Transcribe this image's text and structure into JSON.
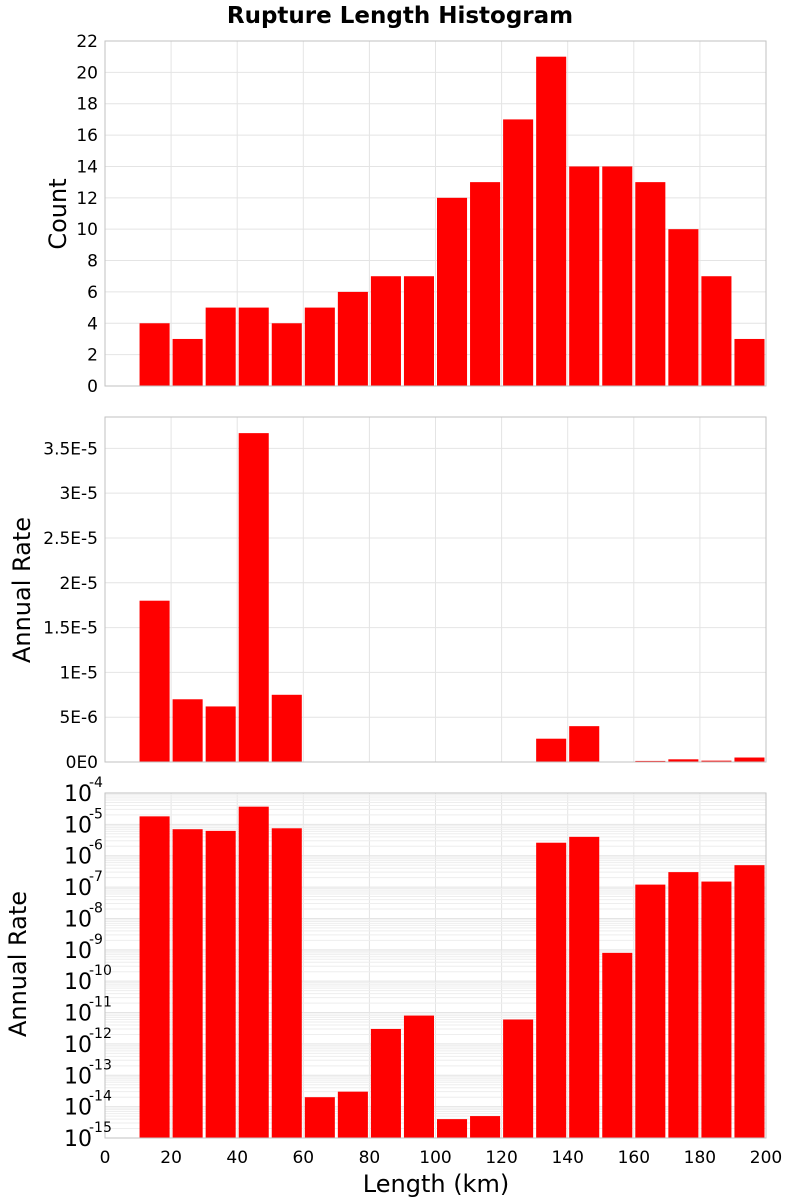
{
  "figure": {
    "title": "Rupture Length Histogram",
    "xlabel": "Length (km)",
    "bar_color": "#ff0000",
    "grid_color": "#e4e4e4",
    "frame_color": "#c2c2c2"
  },
  "chart_data": [
    {
      "type": "bar",
      "ylabel": "Count",
      "yscale": "linear",
      "xlim": [
        0,
        200
      ],
      "ylim": [
        0,
        22
      ],
      "bin_width": 10,
      "bin_centers": [
        15,
        25,
        35,
        45,
        55,
        65,
        75,
        85,
        95,
        105,
        115,
        125,
        135,
        145,
        155,
        165,
        175,
        185,
        195
      ],
      "values": [
        4,
        3,
        5,
        5,
        4,
        5,
        6,
        7,
        7,
        12,
        13,
        17,
        21,
        14,
        14,
        13,
        10,
        7,
        3
      ],
      "y_ticks": [
        0,
        2,
        4,
        6,
        8,
        10,
        12,
        14,
        16,
        18,
        20,
        22
      ],
      "y_tick_labels": [
        "0",
        "2",
        "4",
        "6",
        "8",
        "10",
        "12",
        "14",
        "16",
        "18",
        "20",
        "22"
      ],
      "grid": true
    },
    {
      "type": "bar",
      "ylabel": "Annual Rate",
      "yscale": "linear",
      "xlim": [
        0,
        200
      ],
      "ylim": [
        0,
        3.85e-05
      ],
      "bin_width": 10,
      "bin_centers": [
        15,
        25,
        35,
        45,
        55,
        65,
        75,
        85,
        95,
        105,
        115,
        125,
        135,
        145,
        155,
        165,
        175,
        185,
        195
      ],
      "values": [
        1.8e-05,
        7e-06,
        6.2e-06,
        3.67e-05,
        7.5e-06,
        2e-14,
        3e-14,
        3e-12,
        8e-12,
        4e-15,
        5e-15,
        6e-12,
        2.6e-06,
        4e-06,
        8e-10,
        1.2e-07,
        3e-07,
        1.5e-07,
        5e-07
      ],
      "y_ticks": [
        0,
        5e-06,
        1e-05,
        1.5e-05,
        2e-05,
        2.5e-05,
        3e-05,
        3.5e-05
      ],
      "y_tick_labels": [
        "0E0",
        "5E-6",
        "1E-5",
        "1.5E-5",
        "2E-5",
        "2.5E-5",
        "3E-5",
        "3.5E-5"
      ],
      "grid": true
    },
    {
      "type": "bar",
      "ylabel": "Annual Rate",
      "yscale": "log",
      "xlim": [
        0,
        200
      ],
      "ylim": [
        1e-15,
        0.0001
      ],
      "bin_width": 10,
      "bin_centers": [
        15,
        25,
        35,
        45,
        55,
        65,
        75,
        85,
        95,
        105,
        115,
        125,
        135,
        145,
        155,
        165,
        175,
        185,
        195
      ],
      "values": [
        1.8e-05,
        7e-06,
        6.2e-06,
        3.67e-05,
        7.5e-06,
        2e-14,
        3e-14,
        3e-12,
        8e-12,
        4e-15,
        5e-15,
        6e-12,
        2.6e-06,
        4e-06,
        8e-10,
        1.2e-07,
        3e-07,
        1.5e-07,
        5e-07
      ],
      "y_tick_exponents": [
        "-4",
        "-5",
        "-6",
        "-7",
        "-8",
        "-9",
        "-10",
        "-11",
        "-12",
        "-13",
        "-14",
        "-15"
      ],
      "y_tick_base": "10",
      "x_ticks": [
        0,
        20,
        40,
        60,
        80,
        100,
        120,
        140,
        160,
        180,
        200
      ],
      "x_tick_labels": [
        "0",
        "20",
        "40",
        "60",
        "80",
        "100",
        "120",
        "140",
        "160",
        "180",
        "200"
      ],
      "grid": true
    }
  ]
}
